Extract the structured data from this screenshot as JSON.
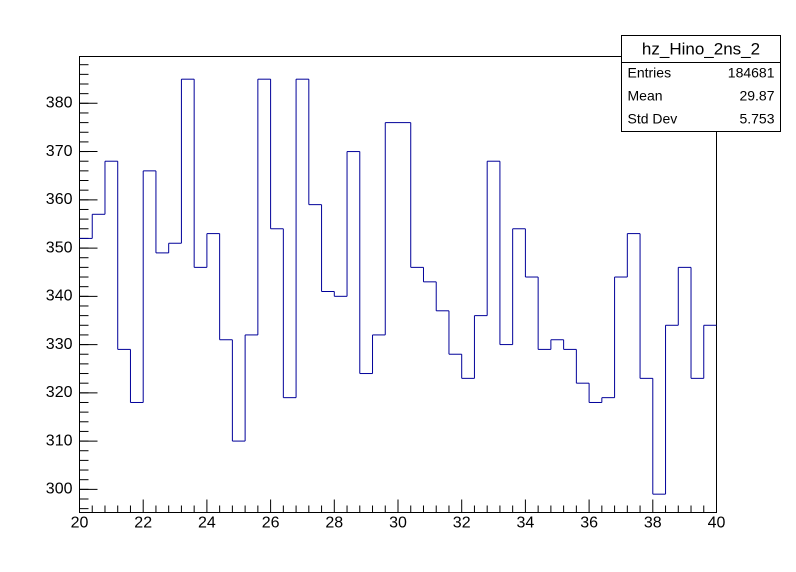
{
  "chart_data": {
    "type": "histogram",
    "title": "hz_Hino_2ns_2",
    "color": "#000099",
    "bins": [
      20.0,
      20.4,
      20.8,
      21.2,
      21.6,
      22.0,
      22.4,
      22.8,
      23.2,
      23.6,
      24.0,
      24.4,
      24.8,
      25.2,
      25.6,
      26.0,
      26.4,
      26.8,
      27.2,
      27.6,
      28.0,
      28.4,
      28.8,
      29.2,
      29.6,
      30.0,
      30.4,
      30.8,
      31.2,
      31.6,
      32.0,
      32.4,
      32.8,
      33.2,
      33.6,
      34.0,
      34.4,
      34.8,
      35.2,
      35.6,
      36.0,
      36.4,
      36.8,
      37.2,
      37.6,
      38.0,
      38.4,
      38.8,
      39.2,
      39.6,
      40.0
    ],
    "values": [
      352,
      357,
      368,
      329,
      318,
      366,
      349,
      351,
      385,
      346,
      353,
      331,
      310,
      332,
      385,
      354,
      319,
      385,
      359,
      341,
      340,
      370,
      324,
      332,
      376,
      376,
      346,
      343,
      337,
      328,
      323,
      336,
      368,
      330,
      354,
      344,
      329,
      331,
      329,
      322,
      318,
      319,
      344,
      353,
      323,
      299,
      334,
      346,
      323,
      334
    ],
    "xlim": [
      20,
      40
    ],
    "xticks": [
      20,
      22,
      24,
      26,
      28,
      30,
      32,
      34,
      36,
      38,
      40
    ],
    "ylim": [
      295.2,
      389.7
    ],
    "yticks": [
      300,
      310,
      320,
      330,
      340,
      350,
      360,
      370,
      380
    ],
    "stats": [
      {
        "label": "Entries",
        "value": 184681
      },
      {
        "label": "Mean",
        "value": 29.87
      },
      {
        "label": "Std Dev",
        "value": 5.753
      }
    ]
  }
}
